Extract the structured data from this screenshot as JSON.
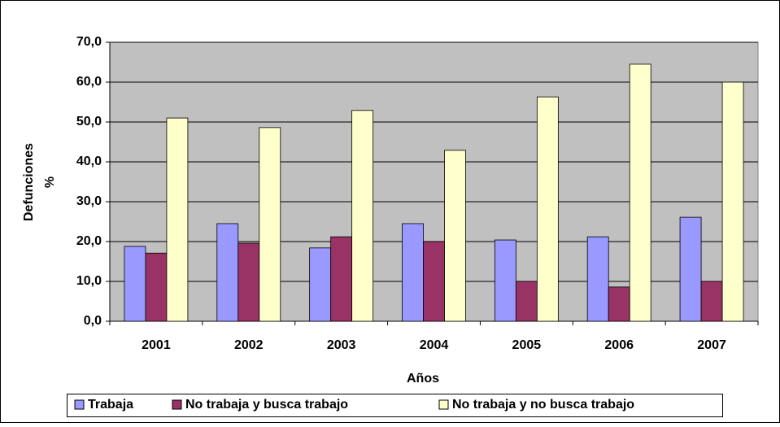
{
  "chart_data": {
    "type": "bar",
    "xlabel": "Años",
    "ylabel": [
      "Defunciones",
      "%"
    ],
    "categories": [
      "2001",
      "2002",
      "2003",
      "2004",
      "2005",
      "2006",
      "2007"
    ],
    "series": [
      {
        "name": "Trabaja",
        "color": "#9999ff",
        "values": [
          18.8,
          24.5,
          18.4,
          24.5,
          20.4,
          21.2,
          26.1
        ]
      },
      {
        "name": "No trabaja y busca trabajo",
        "color": "#993366",
        "values": [
          17.1,
          19.6,
          21.2,
          20.0,
          10.0,
          8.6,
          10.0
        ]
      },
      {
        "name": "No trabaja y no busca trabajo",
        "color": "#ffffcc",
        "values": [
          51.0,
          48.6,
          52.9,
          42.9,
          56.3,
          64.5,
          60.0
        ]
      }
    ],
    "ylim": [
      0,
      70
    ],
    "yticks": [
      {
        "value": 0,
        "label": "0,0"
      },
      {
        "value": 10,
        "label": "10,0"
      },
      {
        "value": 20,
        "label": "20,0"
      },
      {
        "value": 30,
        "label": "30,0"
      },
      {
        "value": 40,
        "label": "40,0"
      },
      {
        "value": 50,
        "label": "50,0"
      },
      {
        "value": 60,
        "label": "60,0"
      },
      {
        "value": 70,
        "label": "70,0"
      }
    ],
    "grid": true,
    "legend": "bottom"
  }
}
